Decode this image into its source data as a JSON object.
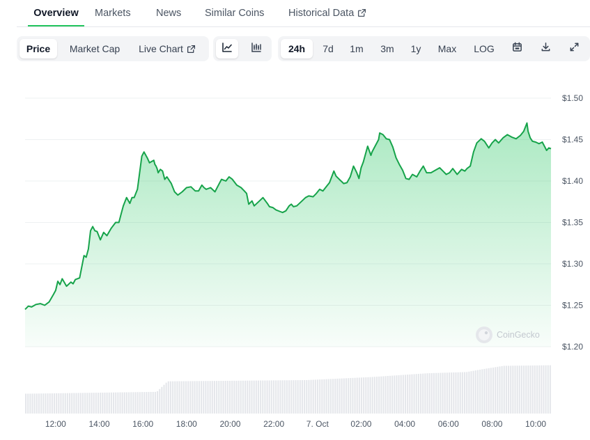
{
  "tabs": [
    {
      "label": "Overview",
      "active": true
    },
    {
      "label": "Markets"
    },
    {
      "label": "News"
    },
    {
      "label": "Similar Coins"
    },
    {
      "label": "Historical Data",
      "icon": "external-link-icon"
    }
  ],
  "toolbar": {
    "metric_buttons": [
      {
        "label": "Price",
        "selected": true
      },
      {
        "label": "Market Cap"
      },
      {
        "label": "Live Chart",
        "icon": "external-link-icon"
      }
    ],
    "chart_type_buttons": [
      {
        "icon": "line-chart-icon",
        "selected": true
      },
      {
        "icon": "candlestick-chart-icon"
      }
    ],
    "range_buttons": [
      {
        "label": "24h",
        "selected": true
      },
      {
        "label": "7d"
      },
      {
        "label": "1m"
      },
      {
        "label": "3m"
      },
      {
        "label": "1y"
      },
      {
        "label": "Max"
      },
      {
        "label": "LOG"
      }
    ],
    "action_icons": [
      "calendar-icon",
      "download-icon",
      "fullscreen-icon"
    ]
  },
  "watermark": "CoinGecko",
  "colors": {
    "line": "#16a34a",
    "area": "#22c55e",
    "volume": "#e5e7eb",
    "grid": "#eef0f2",
    "active_tab": "#22c55e"
  },
  "chart_data": {
    "type": "line",
    "ylim": [
      1.2,
      1.5
    ],
    "yticks": [
      "$1.50",
      "$1.45",
      "$1.40",
      "$1.35",
      "$1.30",
      "$1.25",
      "$1.20"
    ],
    "ytick_values": [
      1.5,
      1.45,
      1.4,
      1.35,
      1.3,
      1.25,
      1.2
    ],
    "xticks": [
      "12:00",
      "14:00",
      "16:00",
      "18:00",
      "20:00",
      "22:00",
      "7. Oct",
      "02:00",
      "04:00",
      "06:00",
      "08:00",
      "10:00"
    ],
    "xtick_hours": [
      12,
      14,
      16,
      18,
      20,
      22,
      24,
      26,
      28,
      30,
      32,
      34
    ],
    "xlim_hours": [
      10.6,
      34.7
    ],
    "grid": true,
    "series": [
      {
        "x_hours": [
          10.6,
          10.75,
          10.9,
          11.1,
          11.3,
          11.5,
          11.7,
          11.9,
          12.0,
          12.1,
          12.2,
          12.3,
          12.5,
          12.7,
          12.8,
          12.9,
          13.1,
          13.3,
          13.4,
          13.5,
          13.6,
          13.7,
          13.8,
          13.9,
          14.05,
          14.2,
          14.35,
          14.55,
          14.75,
          14.9,
          15.0,
          15.1,
          15.25,
          15.4,
          15.5,
          15.6,
          15.75,
          15.95,
          16.05,
          16.2,
          16.3,
          16.5,
          16.55,
          16.6,
          16.65,
          16.7,
          16.8,
          16.9,
          17.0,
          17.1,
          17.3,
          17.45,
          17.6,
          17.8,
          18.0,
          18.2,
          18.4,
          18.55,
          18.7,
          18.8,
          18.9,
          19.1,
          19.3,
          19.5,
          19.6,
          19.8,
          19.95,
          20.1,
          20.3,
          20.5,
          20.65,
          20.75,
          20.85,
          21.0,
          21.1,
          21.3,
          21.5,
          21.7,
          21.8,
          21.95,
          22.1,
          22.3,
          22.4,
          22.55,
          22.7,
          22.8,
          22.9,
          23.05,
          23.25,
          23.45,
          23.6,
          23.8,
          23.95,
          24.1,
          24.25,
          24.4,
          24.55,
          24.75,
          24.85,
          25.0,
          25.2,
          25.35,
          25.5,
          25.65,
          25.8,
          25.9,
          26.0,
          26.1,
          26.3,
          26.45,
          26.5,
          26.6,
          26.7,
          26.8,
          26.85,
          27.0,
          27.15,
          27.3,
          27.45,
          27.6,
          27.75,
          27.9,
          28.05,
          28.2,
          28.35,
          28.55,
          28.7,
          28.85,
          29.0,
          29.2,
          29.4,
          29.6,
          29.75,
          29.9,
          30.05,
          30.2,
          30.4,
          30.6,
          30.75,
          30.85,
          31.0,
          31.15,
          31.3,
          31.5,
          31.65,
          31.85,
          32.0,
          32.15,
          32.3,
          32.5,
          32.7,
          32.9,
          33.1,
          33.3,
          33.45,
          33.6,
          33.65,
          33.75,
          33.85,
          34.0,
          34.15,
          34.3,
          34.4,
          34.5,
          34.6,
          34.7
        ],
        "values": [
          1.245,
          1.249,
          1.248,
          1.251,
          1.252,
          1.25,
          1.254,
          1.263,
          1.268,
          1.279,
          1.275,
          1.282,
          1.273,
          1.278,
          1.276,
          1.281,
          1.283,
          1.31,
          1.308,
          1.318,
          1.34,
          1.345,
          1.34,
          1.339,
          1.329,
          1.338,
          1.334,
          1.343,
          1.35,
          1.35,
          1.36,
          1.37,
          1.38,
          1.373,
          1.38,
          1.38,
          1.39,
          1.43,
          1.435,
          1.428,
          1.422,
          1.425,
          1.42,
          1.418,
          1.415,
          1.41,
          1.414,
          1.412,
          1.402,
          1.405,
          1.397,
          1.387,
          1.383,
          1.387,
          1.392,
          1.393,
          1.388,
          1.388,
          1.395,
          1.392,
          1.39,
          1.392,
          1.387,
          1.397,
          1.402,
          1.4,
          1.405,
          1.402,
          1.395,
          1.392,
          1.388,
          1.385,
          1.372,
          1.376,
          1.37,
          1.375,
          1.38,
          1.373,
          1.369,
          1.368,
          1.365,
          1.363,
          1.362,
          1.364,
          1.37,
          1.372,
          1.369,
          1.37,
          1.375,
          1.38,
          1.382,
          1.381,
          1.385,
          1.39,
          1.388,
          1.393,
          1.398,
          1.412,
          1.406,
          1.402,
          1.397,
          1.398,
          1.405,
          1.418,
          1.41,
          1.403,
          1.416,
          1.423,
          1.442,
          1.431,
          1.435,
          1.44,
          1.445,
          1.45,
          1.458,
          1.456,
          1.451,
          1.45,
          1.441,
          1.428,
          1.42,
          1.413,
          1.403,
          1.402,
          1.408,
          1.405,
          1.412,
          1.418,
          1.41,
          1.41,
          1.413,
          1.416,
          1.412,
          1.408,
          1.41,
          1.415,
          1.408,
          1.414,
          1.412,
          1.415,
          1.418,
          1.435,
          1.446,
          1.451,
          1.448,
          1.44,
          1.446,
          1.45,
          1.446,
          1.452,
          1.456,
          1.453,
          1.451,
          1.455,
          1.46,
          1.47,
          1.46,
          1.452,
          1.448,
          1.447,
          1.445,
          1.447,
          1.442,
          1.437,
          1.44,
          1.439
        ]
      }
    ],
    "volume": {
      "note_ylim": [
        0,
        1
      ],
      "x_hours": [
        10.6,
        16.6,
        17.1,
        23.5,
        26.5,
        29.0,
        30.8,
        31.6,
        32.5,
        34.7
      ],
      "values": [
        0.32,
        0.35,
        0.52,
        0.54,
        0.59,
        0.65,
        0.67,
        0.72,
        0.77,
        0.78
      ]
    }
  }
}
